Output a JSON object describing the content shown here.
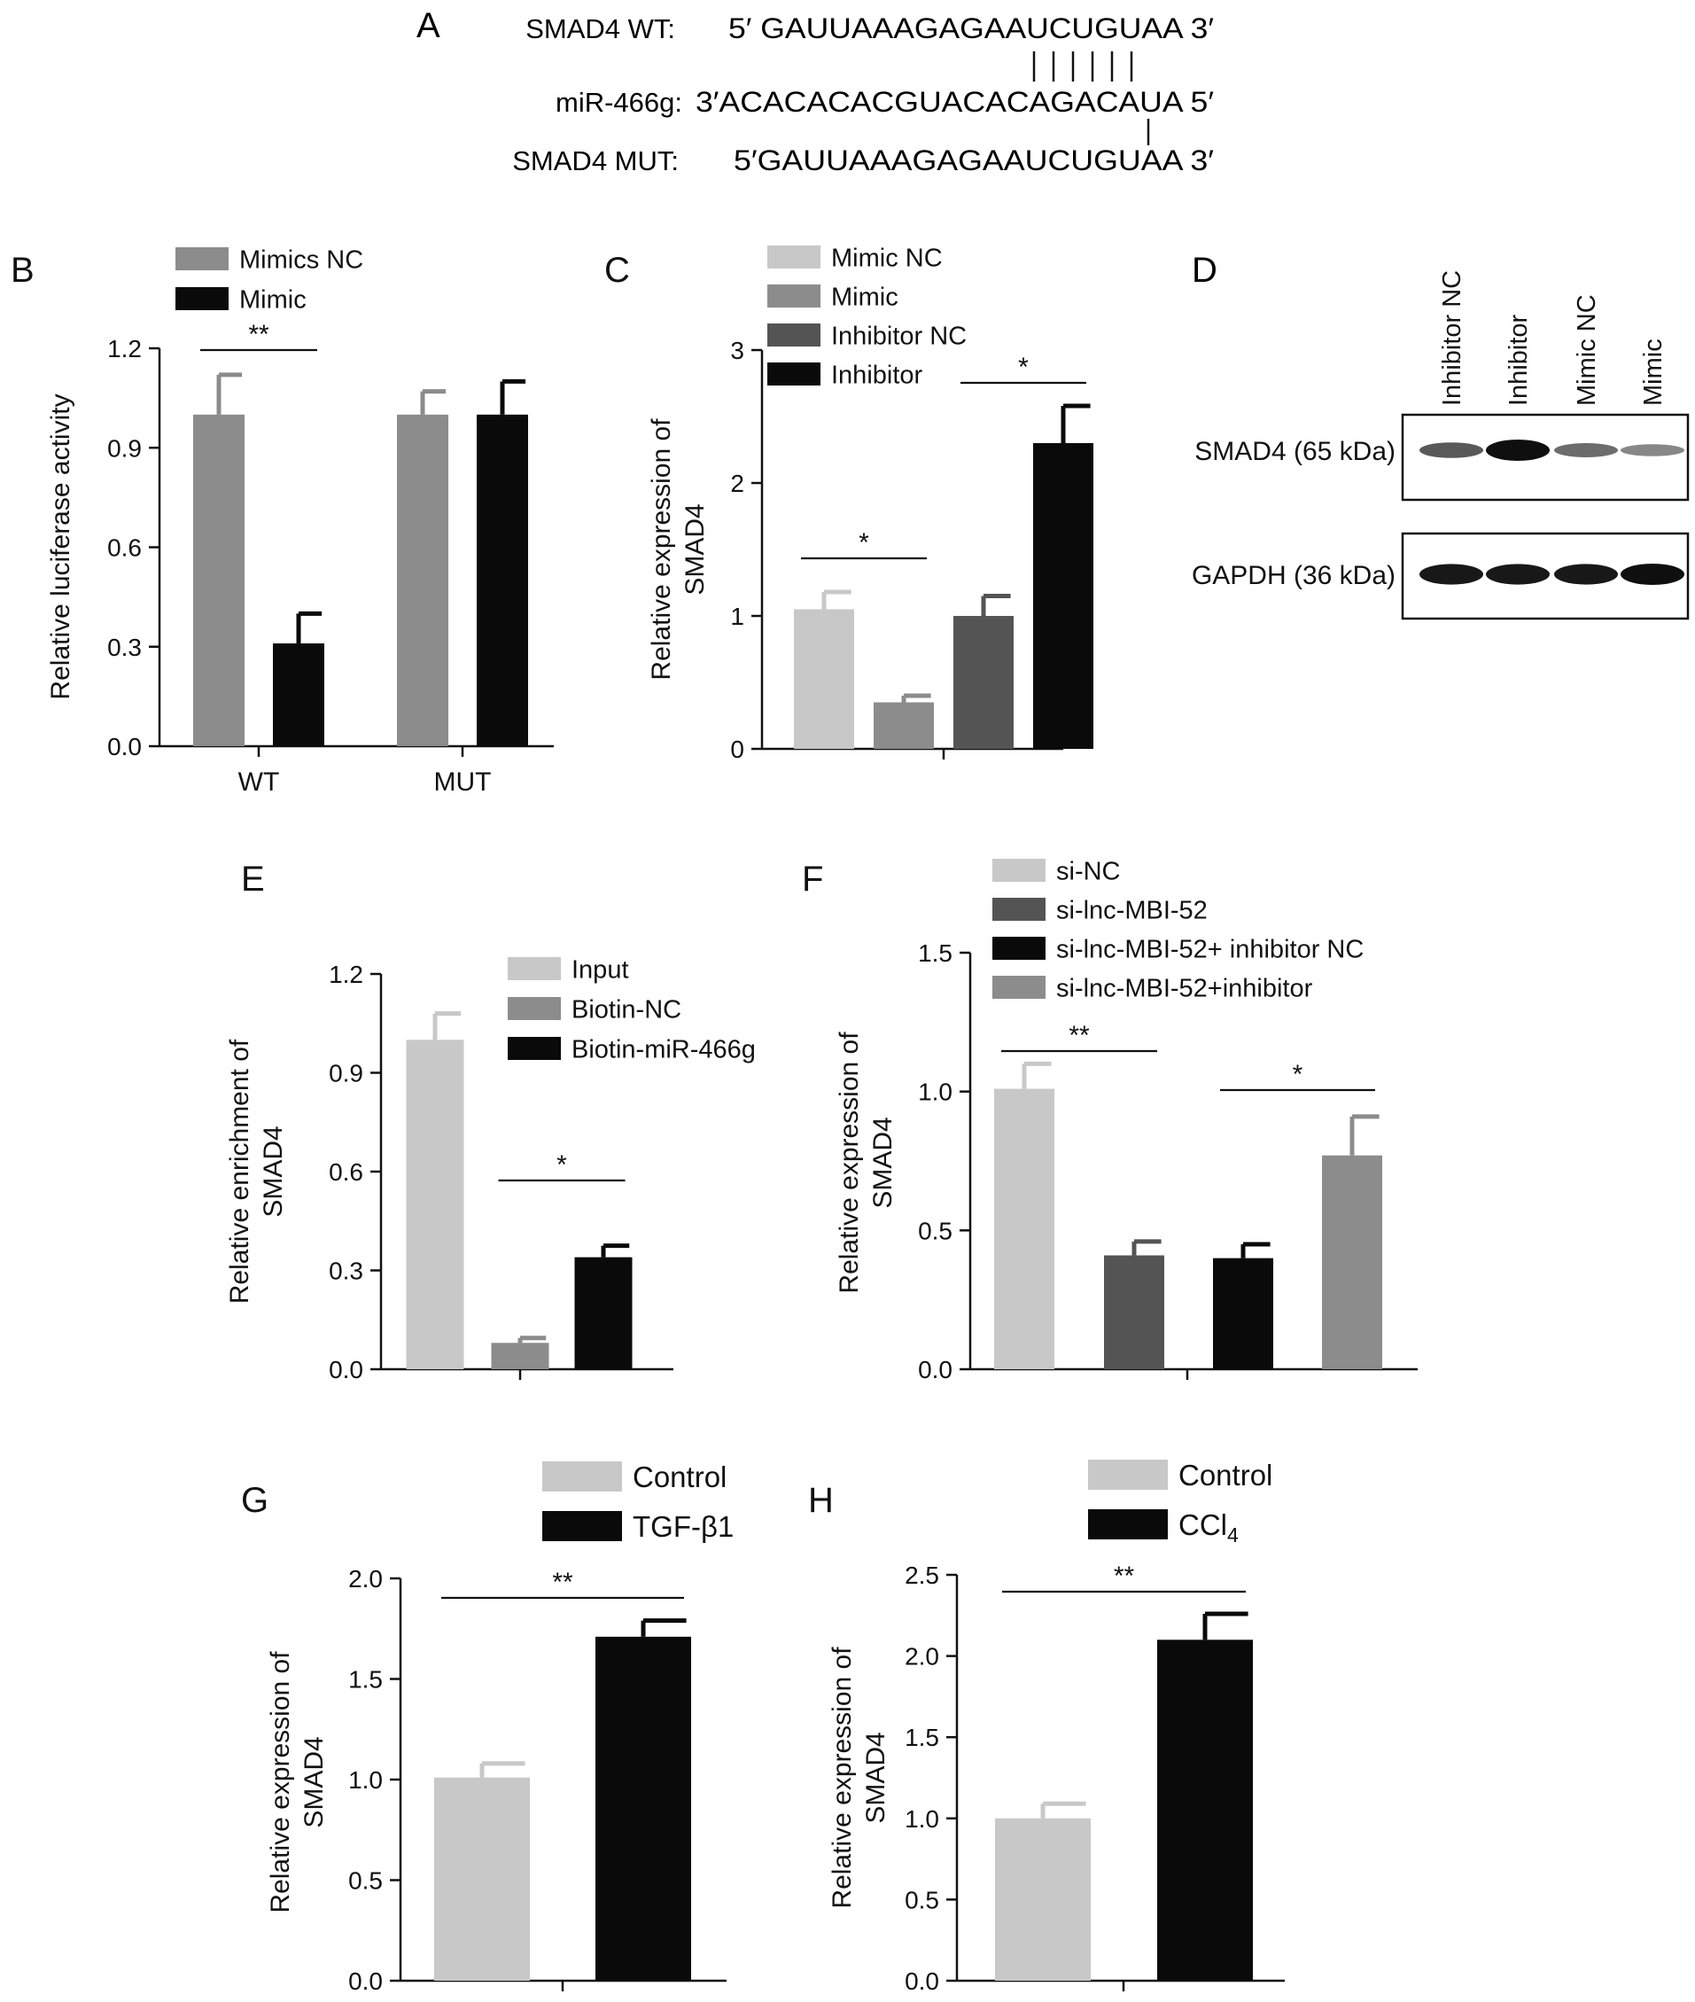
{
  "panel_a": {
    "letter": "A",
    "rows": [
      {
        "label": "SMAD4 WT:",
        "seq": "5′ GAUUAAAGAGAAUCUGUAA  3′"
      },
      {
        "label": "miR-466g:",
        "seq": "3′ACACACACGUACACAGACAUA  5′"
      },
      {
        "label": "SMAD4 MUT:",
        "seq": "5′GAUUAAAGAGAAUCUGUAA  3′"
      }
    ]
  },
  "western": {
    "letter": "D",
    "lanes": [
      "Inhibitor NC",
      "Inhibitor",
      "Mimic NC",
      "Mimic"
    ],
    "bands": [
      {
        "label": "SMAD4 (65 kDa)",
        "intensity": [
          0.6,
          1.0,
          0.5,
          0.35
        ]
      },
      {
        "label": "GAPDH (36 kDa)",
        "intensity": [
          0.95,
          0.95,
          0.95,
          1.0
        ]
      }
    ]
  },
  "colors": {
    "light": "#c8c8c8",
    "mid": "#8c8c8c",
    "dark": "#545454",
    "black": "#0a0a0a"
  },
  "chart_data": [
    {
      "id": "B",
      "letter": "B",
      "type": "bar",
      "ylabel": [
        "Relative luciferase activity"
      ],
      "ylim": [
        0,
        1.2
      ],
      "yticks": [
        "0.0",
        "0.3",
        "0.6",
        "0.9",
        "1.2"
      ],
      "categories": [
        "WT",
        "MUT"
      ],
      "series": [
        {
          "name": "Mimics NC",
          "color": "#8c8c8c",
          "values": [
            1.0,
            1.0
          ],
          "err": [
            0.12,
            0.07
          ]
        },
        {
          "name": "Mimic",
          "color": "#0a0a0a",
          "values": [
            0.31,
            1.0
          ],
          "err": [
            0.09,
            0.1
          ]
        }
      ],
      "annotations": [
        {
          "text": "**",
          "bars": [
            [
              0,
              0
            ],
            [
              1,
              0
            ]
          ]
        }
      ]
    },
    {
      "id": "C",
      "letter": "C",
      "type": "bar",
      "ylabel": [
        "Relative expression of",
        "SMAD4"
      ],
      "ylim": [
        0,
        3
      ],
      "yticks": [
        "0",
        "1",
        "2",
        "3"
      ],
      "categories": [
        ""
      ],
      "series": [
        {
          "name": "Mimic NC",
          "color": "#c8c8c8",
          "values": [
            1.05
          ],
          "err": [
            0.13
          ]
        },
        {
          "name": "Mimic",
          "color": "#8c8c8c",
          "values": [
            0.35
          ],
          "err": [
            0.05
          ]
        },
        {
          "name": "Inhibitor NC",
          "color": "#545454",
          "values": [
            1.0
          ],
          "err": [
            0.15
          ]
        },
        {
          "name": "Inhibitor",
          "color": "#0a0a0a",
          "values": [
            2.3
          ],
          "err": [
            0.28
          ]
        }
      ],
      "annotations": [
        {
          "text": "*",
          "bars": [
            [
              0,
              0
            ],
            [
              1,
              0
            ]
          ]
        },
        {
          "text": "*",
          "bars": [
            [
              2,
              0
            ],
            [
              3,
              0
            ]
          ]
        }
      ]
    },
    {
      "id": "E",
      "letter": "E",
      "type": "bar",
      "ylabel": [
        "Relative enrichment of",
        "SMAD4"
      ],
      "ylim": [
        0,
        1.2
      ],
      "yticks": [
        "0.0",
        "0.3",
        "0.6",
        "0.9",
        "1.2"
      ],
      "categories": [
        ""
      ],
      "series": [
        {
          "name": "Input",
          "color": "#c8c8c8",
          "values": [
            1.0
          ],
          "err": [
            0.08
          ]
        },
        {
          "name": "Biotin-NC",
          "color": "#8c8c8c",
          "values": [
            0.08
          ],
          "err": [
            0.015
          ]
        },
        {
          "name": "Biotin-miR-466g",
          "color": "#0a0a0a",
          "values": [
            0.34
          ],
          "err": [
            0.035
          ]
        }
      ],
      "annotations": [
        {
          "text": "*",
          "bars": [
            [
              1,
              0
            ],
            [
              2,
              0
            ]
          ]
        }
      ]
    },
    {
      "id": "F",
      "letter": "F",
      "type": "bar",
      "ylabel": [
        "Relative expression of",
        "SMAD4"
      ],
      "ylim": [
        0,
        1.5
      ],
      "yticks": [
        "0.0",
        "0.5",
        "1.0",
        "1.5"
      ],
      "categories": [
        ""
      ],
      "series": [
        {
          "name": "si-NC",
          "color": "#c8c8c8",
          "values": [
            1.01
          ],
          "err": [
            0.09
          ]
        },
        {
          "name": "si-lnc-MBI-52",
          "color": "#545454",
          "values": [
            0.41
          ],
          "err": [
            0.05
          ]
        },
        {
          "name": "si-lnc-MBI-52+ inhibitor NC",
          "color": "#0a0a0a",
          "values": [
            0.4
          ],
          "err": [
            0.05
          ]
        },
        {
          "name": "si-lnc-MBI-52+inhibitor",
          "color": "#8c8c8c",
          "values": [
            0.77
          ],
          "err": [
            0.14
          ]
        }
      ],
      "annotations": [
        {
          "text": "**",
          "bars": [
            [
              0,
              0
            ],
            [
              1,
              0
            ]
          ]
        },
        {
          "text": "*",
          "bars": [
            [
              2,
              0
            ],
            [
              3,
              0
            ]
          ]
        }
      ]
    },
    {
      "id": "G",
      "letter": "G",
      "type": "bar",
      "ylabel": [
        "Relative expression of",
        "SMAD4"
      ],
      "ylim": [
        0,
        2.0
      ],
      "yticks": [
        "0.0",
        "0.5",
        "1.0",
        "1.5",
        "2.0"
      ],
      "categories": [
        ""
      ],
      "series": [
        {
          "name": "Control",
          "color": "#c8c8c8",
          "values": [
            1.01
          ],
          "err": [
            0.07
          ]
        },
        {
          "name": "TGF-β1",
          "color": "#0a0a0a",
          "values": [
            1.71
          ],
          "err": [
            0.08
          ]
        }
      ],
      "annotations": [
        {
          "text": "**",
          "bars": [
            [
              0,
              0
            ],
            [
              1,
              0
            ]
          ]
        }
      ]
    },
    {
      "id": "H",
      "letter": "H",
      "type": "bar",
      "ylabel": [
        "Relative expression of",
        "SMAD4"
      ],
      "ylim": [
        0,
        2.5
      ],
      "yticks": [
        "0.0",
        "0.5",
        "1.0",
        "1.5",
        "2.0",
        "2.5"
      ],
      "categories": [
        ""
      ],
      "series": [
        {
          "name": "Control",
          "color": "#c8c8c8",
          "values": [
            1.0
          ],
          "err": [
            0.09
          ]
        },
        {
          "name": "CCl4",
          "color": "#0a0a0a",
          "values": [
            2.1
          ],
          "err": [
            0.16
          ]
        }
      ],
      "annotations": [
        {
          "text": "**",
          "bars": [
            [
              0,
              0
            ],
            [
              1,
              0
            ]
          ]
        }
      ]
    }
  ]
}
